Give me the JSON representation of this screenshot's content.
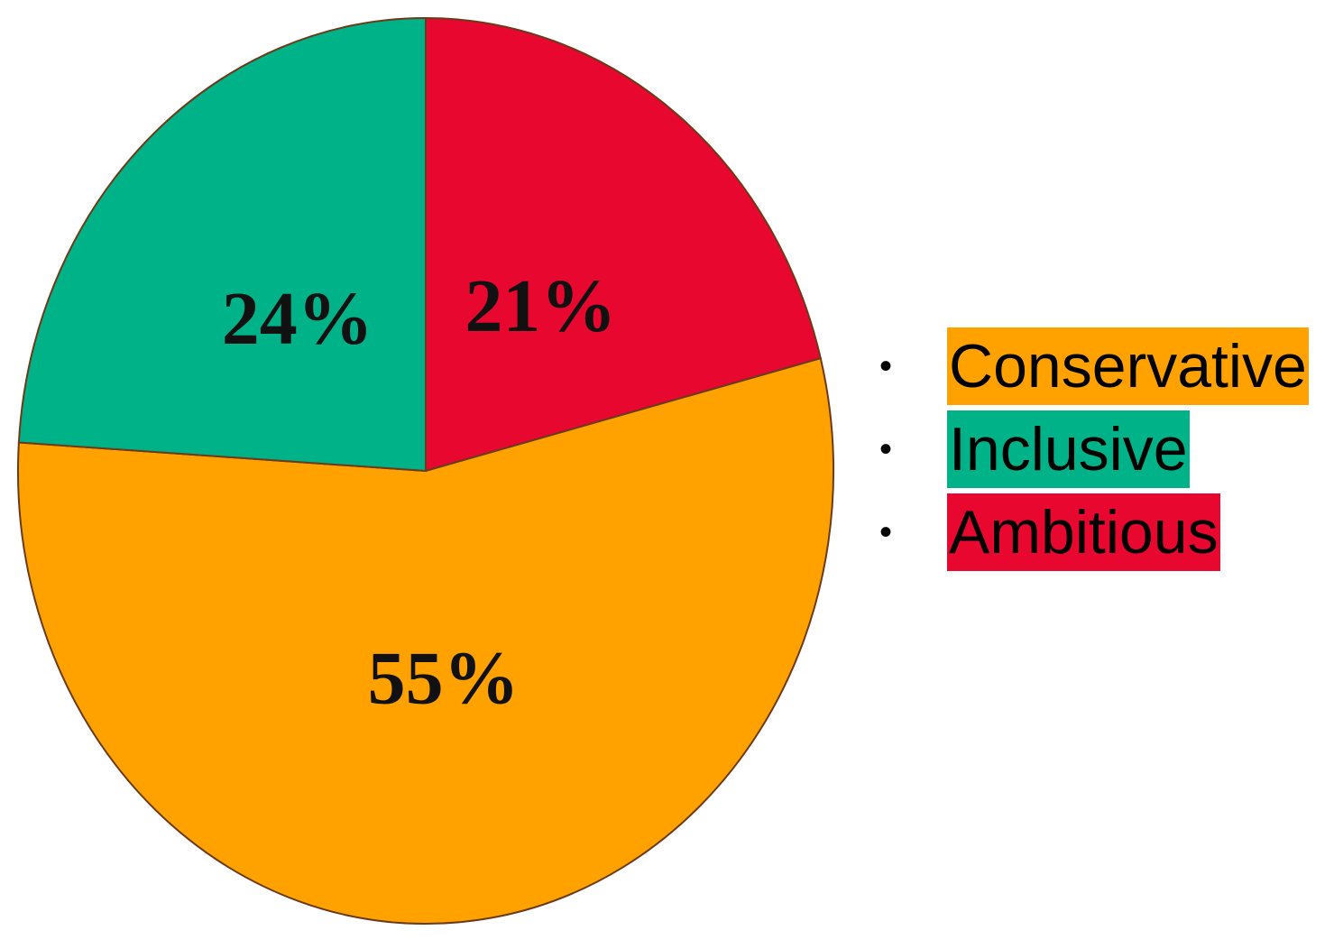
{
  "chart_data": {
    "type": "pie",
    "unit": "%",
    "slices": [
      {
        "name": "Ambitious",
        "value": 21,
        "label": "21%",
        "color": "#e8072f"
      },
      {
        "name": "Conservative",
        "value": 55,
        "label": "55%",
        "color": "#ffa200"
      },
      {
        "name": "Inclusive",
        "value": 24,
        "label": "24%",
        "color": "#00b287"
      }
    ],
    "legend": {
      "placement": "right",
      "items": [
        {
          "bullet": "•",
          "label": "Conservative",
          "color": "#ffa200"
        },
        {
          "bullet": "•",
          "label": "Inclusive",
          "color": "#00b287"
        },
        {
          "bullet": "•",
          "label": "Ambitious",
          "color": "#e8072f"
        }
      ]
    }
  }
}
